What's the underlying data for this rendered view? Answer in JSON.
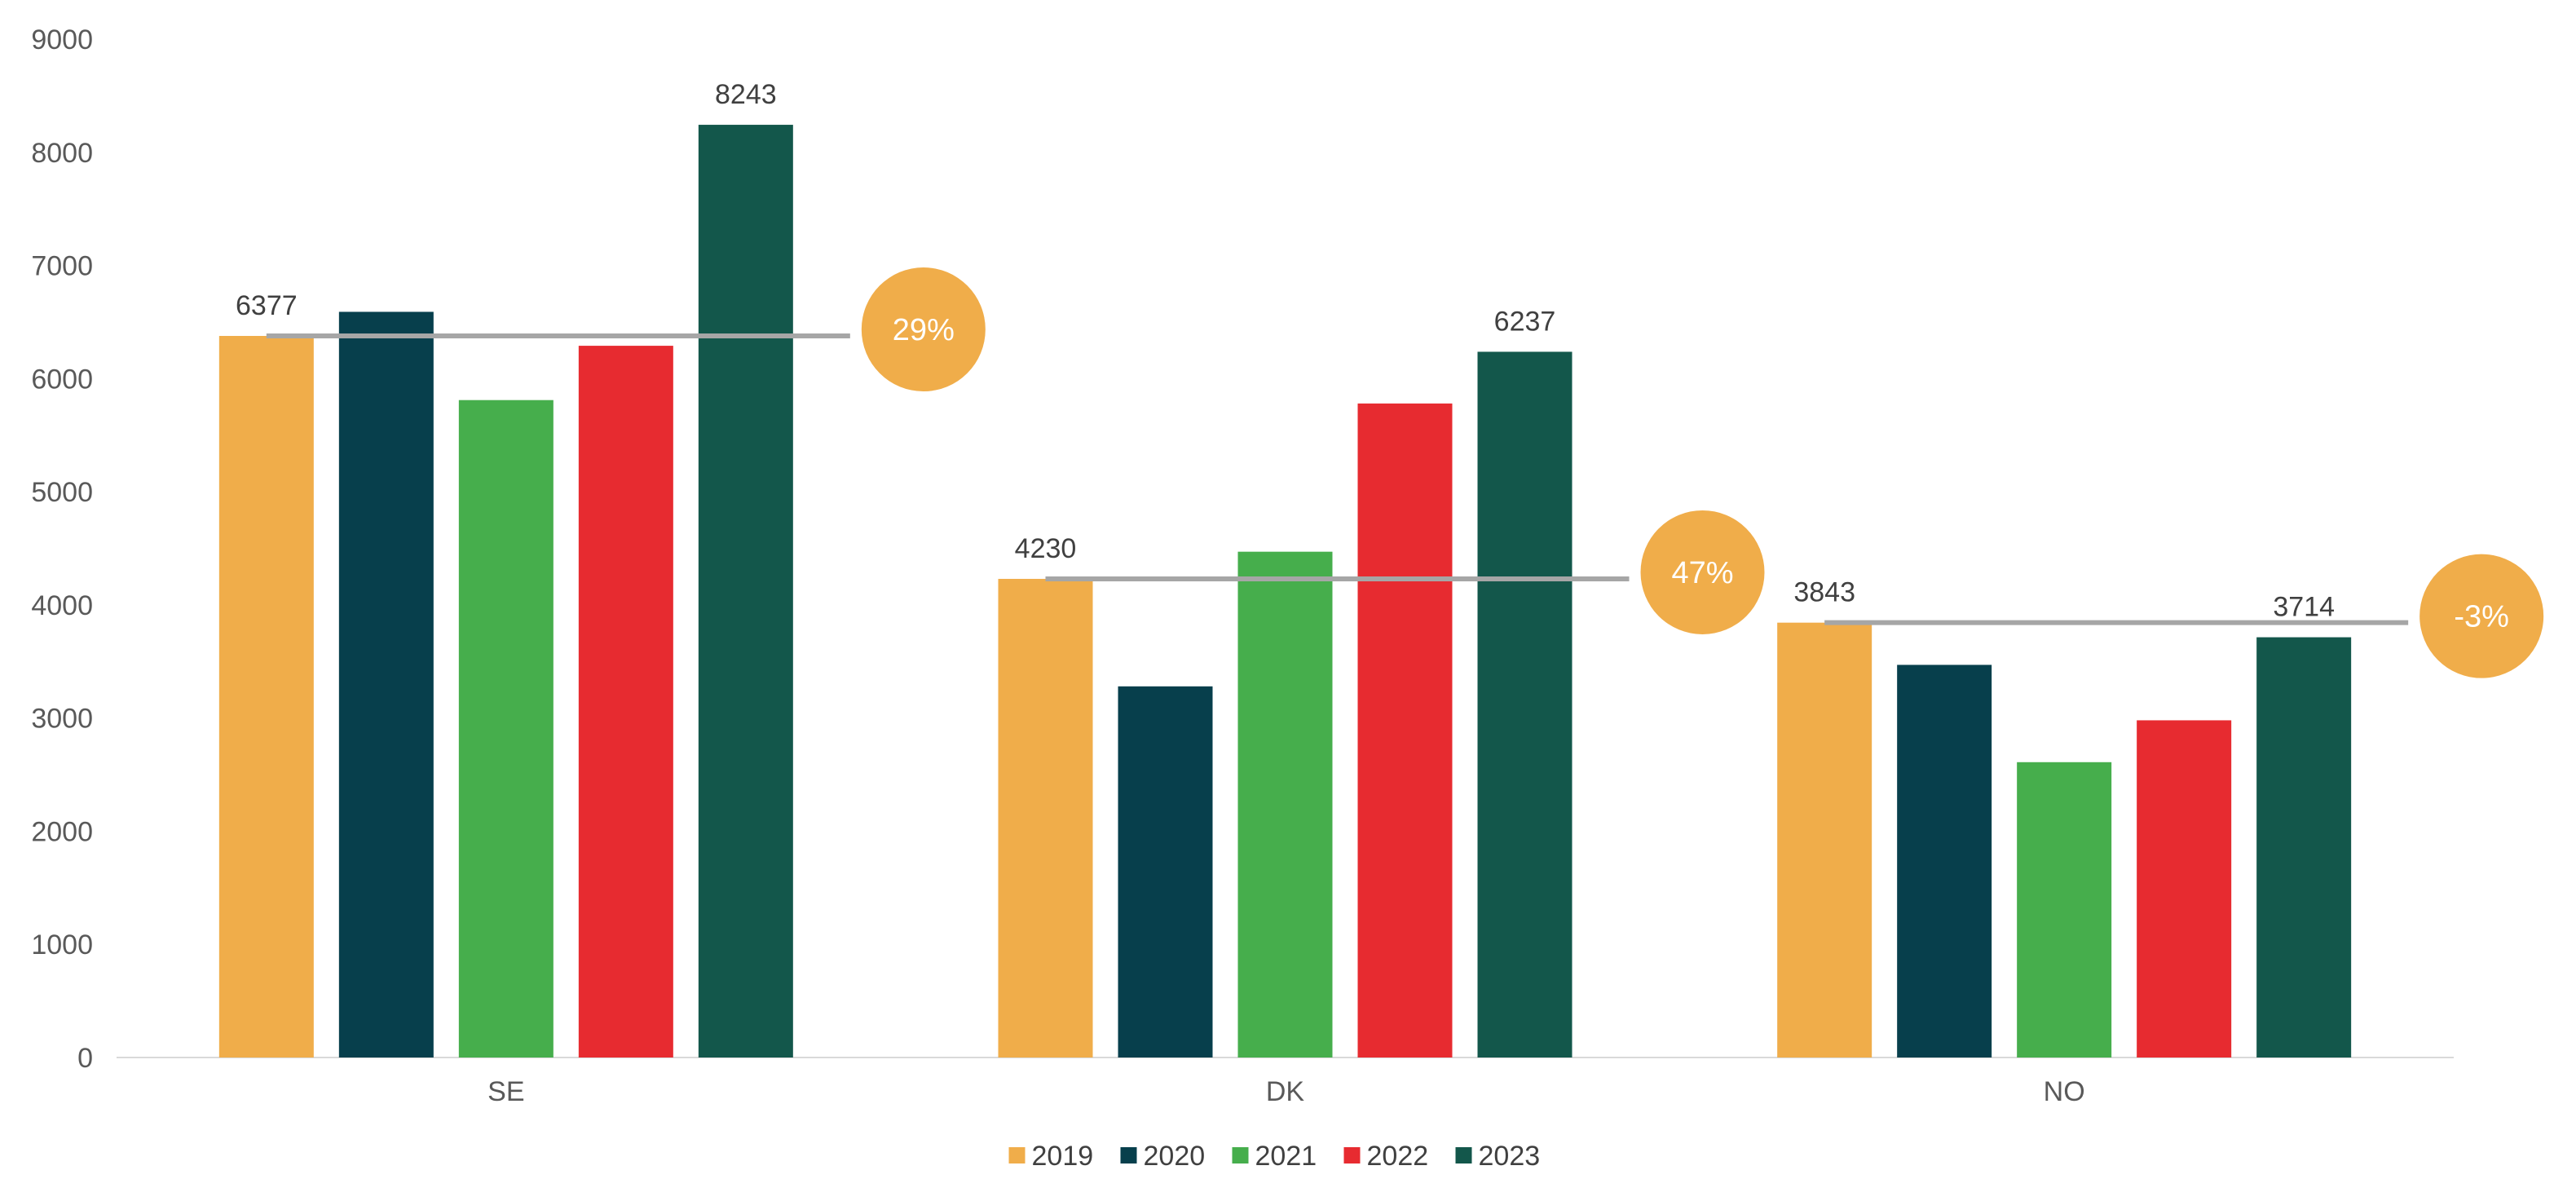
{
  "chart_data": {
    "type": "bar",
    "categories": [
      "SE",
      "DK",
      "NO"
    ],
    "series": [
      {
        "name": "2019",
        "color": "#F0AD4A",
        "values": [
          6377,
          4230,
          3843
        ]
      },
      {
        "name": "2020",
        "color": "#073F4C",
        "values": [
          6590,
          3280,
          3470
        ]
      },
      {
        "name": "2021",
        "color": "#46AE4C",
        "values": [
          5810,
          4470,
          2610
        ]
      },
      {
        "name": "2022",
        "color": "#E72B30",
        "values": [
          6290,
          5780,
          2980
        ]
      },
      {
        "name": "2023",
        "color": "#13574B",
        "values": [
          8243,
          6237,
          3714
        ]
      }
    ],
    "data_labels": [
      {
        "category": "SE",
        "series": "2019",
        "text": "6377"
      },
      {
        "category": "SE",
        "series": "2023",
        "text": "8243"
      },
      {
        "category": "DK",
        "series": "2019",
        "text": "4230"
      },
      {
        "category": "DK",
        "series": "2023",
        "text": "6237"
      },
      {
        "category": "NO",
        "series": "2019",
        "text": "3843"
      },
      {
        "category": "NO",
        "series": "2023",
        "text": "3714"
      }
    ],
    "reference_lines": [
      {
        "category": "SE",
        "value": 6377,
        "change_label": "29%"
      },
      {
        "category": "DK",
        "value": 4230,
        "change_label": "47%"
      },
      {
        "category": "NO",
        "value": 3843,
        "change_label": "-3%"
      }
    ],
    "ylim": [
      0,
      9000
    ],
    "yticks": [
      0,
      1000,
      2000,
      3000,
      4000,
      5000,
      6000,
      7000,
      8000,
      9000
    ],
    "grid": false,
    "legend_position": "bottom",
    "badge_color": "#F0AD4A",
    "reference_line_color": "#A6A6A6",
    "axis_color": "#D9D9D9",
    "title": "",
    "xlabel": "",
    "ylabel": ""
  }
}
